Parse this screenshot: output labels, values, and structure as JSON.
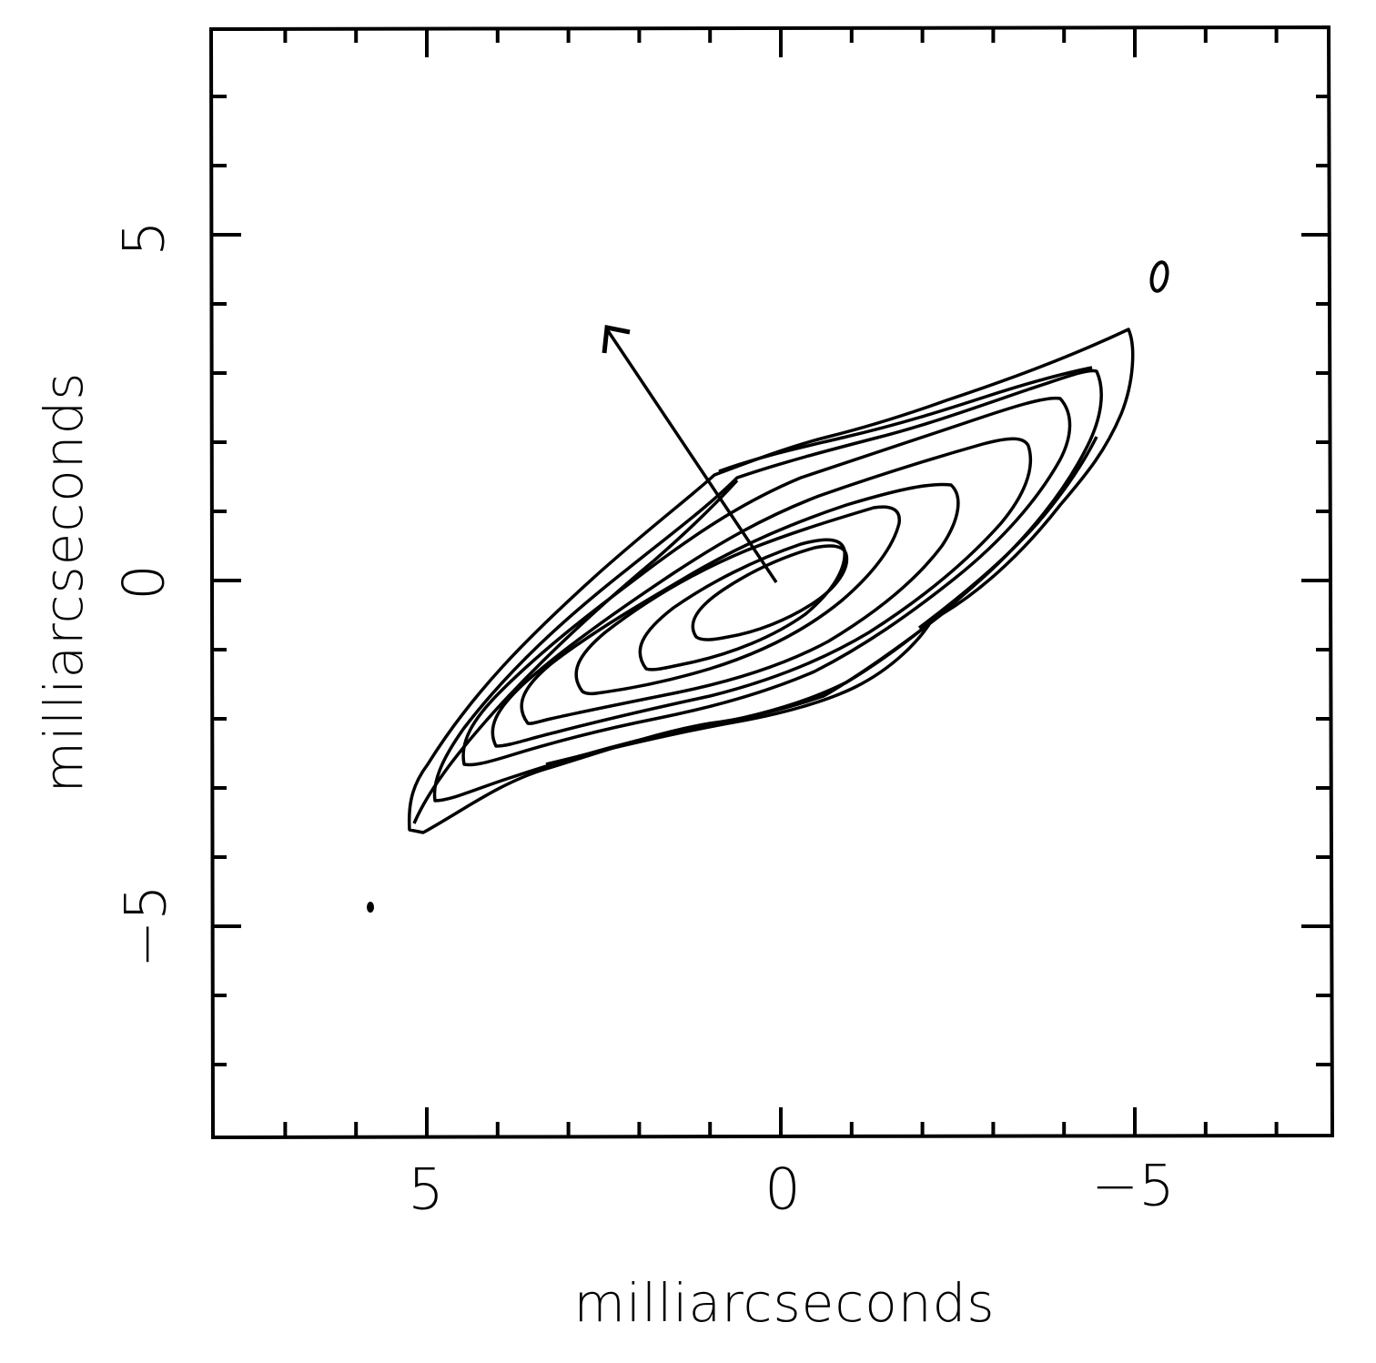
{
  "chart_data": {
    "type": "contour",
    "title": "",
    "xlabel": "milliarcseconds",
    "ylabel": "milliarcseconds",
    "xlim": [
      8.0,
      -7.8
    ],
    "ylim": [
      -8.1,
      8.0
    ],
    "x_inverted": true,
    "grid": false,
    "legend": null,
    "x_ticks_major": [
      5,
      0,
      -5
    ],
    "x_tick_labels": [
      "5",
      "0",
      "−5"
    ],
    "y_ticks_major": [
      5,
      0,
      -5
    ],
    "y_tick_labels": [
      "5",
      "0",
      "−5"
    ],
    "minor_tick_step": 1,
    "contours": {
      "count": 10,
      "center": [
        0.4,
        0.2
      ],
      "position_angle_deg": 62,
      "description": "Nested elongated elliptical contours of an elongated source, elongated from lower-left (~5, -3.5) to upper-right (~-5, 3.6); outer contours truncated into a parallelogram-like outline",
      "outer_extent": {
        "lower_left_tip": [
          5.0,
          -3.6
        ],
        "upper_right_tip": [
          -4.9,
          3.6
        ]
      },
      "innermost": {
        "center": [
          -0.3,
          0.1
        ],
        "half_major": 1.3,
        "half_minor": 0.45
      }
    },
    "annotations": [
      {
        "type": "arrow",
        "from": [
          0.0,
          0.0
        ],
        "to": [
          2.5,
          3.6
        ],
        "label": ""
      },
      {
        "type": "small_contour",
        "x": -5.4,
        "y": 4.4
      },
      {
        "type": "dot",
        "x": 5.9,
        "y": -4.7
      }
    ]
  },
  "axes": {
    "x_title": "milliarcseconds",
    "y_title": "milliarcseconds",
    "x_tick_labels": [
      "5",
      "0",
      "−5"
    ],
    "y_tick_labels": [
      "5",
      "0",
      "−5"
    ]
  },
  "colors": {
    "ink": "#000000",
    "background": "#ffffff"
  }
}
